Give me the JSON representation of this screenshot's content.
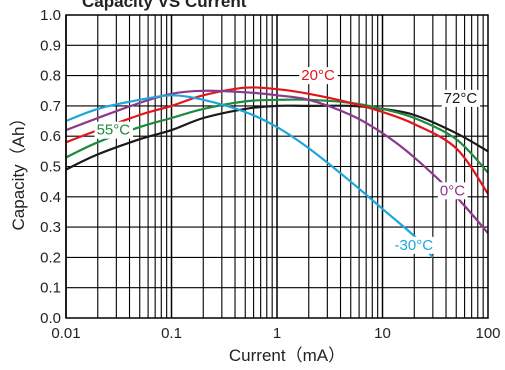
{
  "chart_data": {
    "type": "line",
    "title": "Capacity VS Current",
    "xlabel": "Current（mA）",
    "ylabel": "Capacity（Ah）",
    "xscale": "log",
    "xlim": [
      0.01,
      100
    ],
    "ylim": [
      0.0,
      1.0
    ],
    "grid": true,
    "x_ticks": [
      {
        "value": 0.01,
        "label": "0.01"
      },
      {
        "value": 0.1,
        "label": "0.1"
      },
      {
        "value": 1,
        "label": "1"
      },
      {
        "value": 10,
        "label": "10"
      },
      {
        "value": 100,
        "label": "100"
      }
    ],
    "y_ticks": [
      {
        "value": 0.0,
        "label": "0.0"
      },
      {
        "value": 0.1,
        "label": "0.1"
      },
      {
        "value": 0.2,
        "label": "0.2"
      },
      {
        "value": 0.3,
        "label": "0.3"
      },
      {
        "value": 0.4,
        "label": "0.4"
      },
      {
        "value": 0.5,
        "label": "0.5"
      },
      {
        "value": 0.6,
        "label": "0.6"
      },
      {
        "value": 0.7,
        "label": "0.7"
      },
      {
        "value": 0.8,
        "label": "0.8"
      },
      {
        "value": 0.9,
        "label": "0.9"
      },
      {
        "value": 1.0,
        "label": "1.0"
      }
    ],
    "series": [
      {
        "name": "72°C",
        "color": "#1a1a1a",
        "label_at": {
          "x": 38,
          "y": 0.71
        },
        "points": [
          [
            0.01,
            0.49
          ],
          [
            0.02,
            0.54
          ],
          [
            0.05,
            0.59
          ],
          [
            0.1,
            0.62
          ],
          [
            0.2,
            0.66
          ],
          [
            0.5,
            0.69
          ],
          [
            1,
            0.7
          ],
          [
            2,
            0.7
          ],
          [
            5,
            0.7
          ],
          [
            10,
            0.69
          ],
          [
            20,
            0.67
          ],
          [
            50,
            0.61
          ],
          [
            100,
            0.55
          ]
        ]
      },
      {
        "name": "55°C",
        "color": "#1e8a3c",
        "label_at": {
          "x": 0.0195,
          "y": 0.605
        },
        "points": [
          [
            0.01,
            0.53
          ],
          [
            0.02,
            0.58
          ],
          [
            0.05,
            0.63
          ],
          [
            0.1,
            0.66
          ],
          [
            0.2,
            0.69
          ],
          [
            0.5,
            0.715
          ],
          [
            1,
            0.72
          ],
          [
            2,
            0.72
          ],
          [
            5,
            0.71
          ],
          [
            10,
            0.69
          ],
          [
            20,
            0.66
          ],
          [
            50,
            0.59
          ],
          [
            100,
            0.48
          ]
        ]
      },
      {
        "name": "20°C",
        "color": "#e3141c",
        "label_at": {
          "x": 1.7,
          "y": 0.785
        },
        "points": [
          [
            0.01,
            0.58
          ],
          [
            0.02,
            0.62
          ],
          [
            0.05,
            0.67
          ],
          [
            0.1,
            0.7
          ],
          [
            0.2,
            0.735
          ],
          [
            0.5,
            0.76
          ],
          [
            1,
            0.755
          ],
          [
            2,
            0.74
          ],
          [
            5,
            0.71
          ],
          [
            10,
            0.68
          ],
          [
            20,
            0.64
          ],
          [
            50,
            0.56
          ],
          [
            100,
            0.41
          ]
        ]
      },
      {
        "name": "0°C",
        "color": "#8b3a8b",
        "label_at": {
          "x": 35,
          "y": 0.405
        },
        "points": [
          [
            0.01,
            0.62
          ],
          [
            0.02,
            0.66
          ],
          [
            0.05,
            0.71
          ],
          [
            0.1,
            0.74
          ],
          [
            0.2,
            0.75
          ],
          [
            0.5,
            0.745
          ],
          [
            1,
            0.735
          ],
          [
            2,
            0.72
          ],
          [
            5,
            0.67
          ],
          [
            10,
            0.61
          ],
          [
            20,
            0.53
          ],
          [
            50,
            0.4
          ],
          [
            100,
            0.28
          ]
        ]
      },
      {
        "name": "-30°C",
        "color": "#1ea6dc",
        "label_at": {
          "x": 13,
          "y": 0.225
        },
        "points": [
          [
            0.01,
            0.65
          ],
          [
            0.02,
            0.69
          ],
          [
            0.05,
            0.72
          ],
          [
            0.1,
            0.735
          ],
          [
            0.2,
            0.72
          ],
          [
            0.5,
            0.68
          ],
          [
            1,
            0.63
          ],
          [
            2,
            0.56
          ],
          [
            5,
            0.45
          ],
          [
            10,
            0.36
          ],
          [
            20,
            0.27
          ],
          [
            30,
            0.2
          ]
        ]
      }
    ]
  }
}
